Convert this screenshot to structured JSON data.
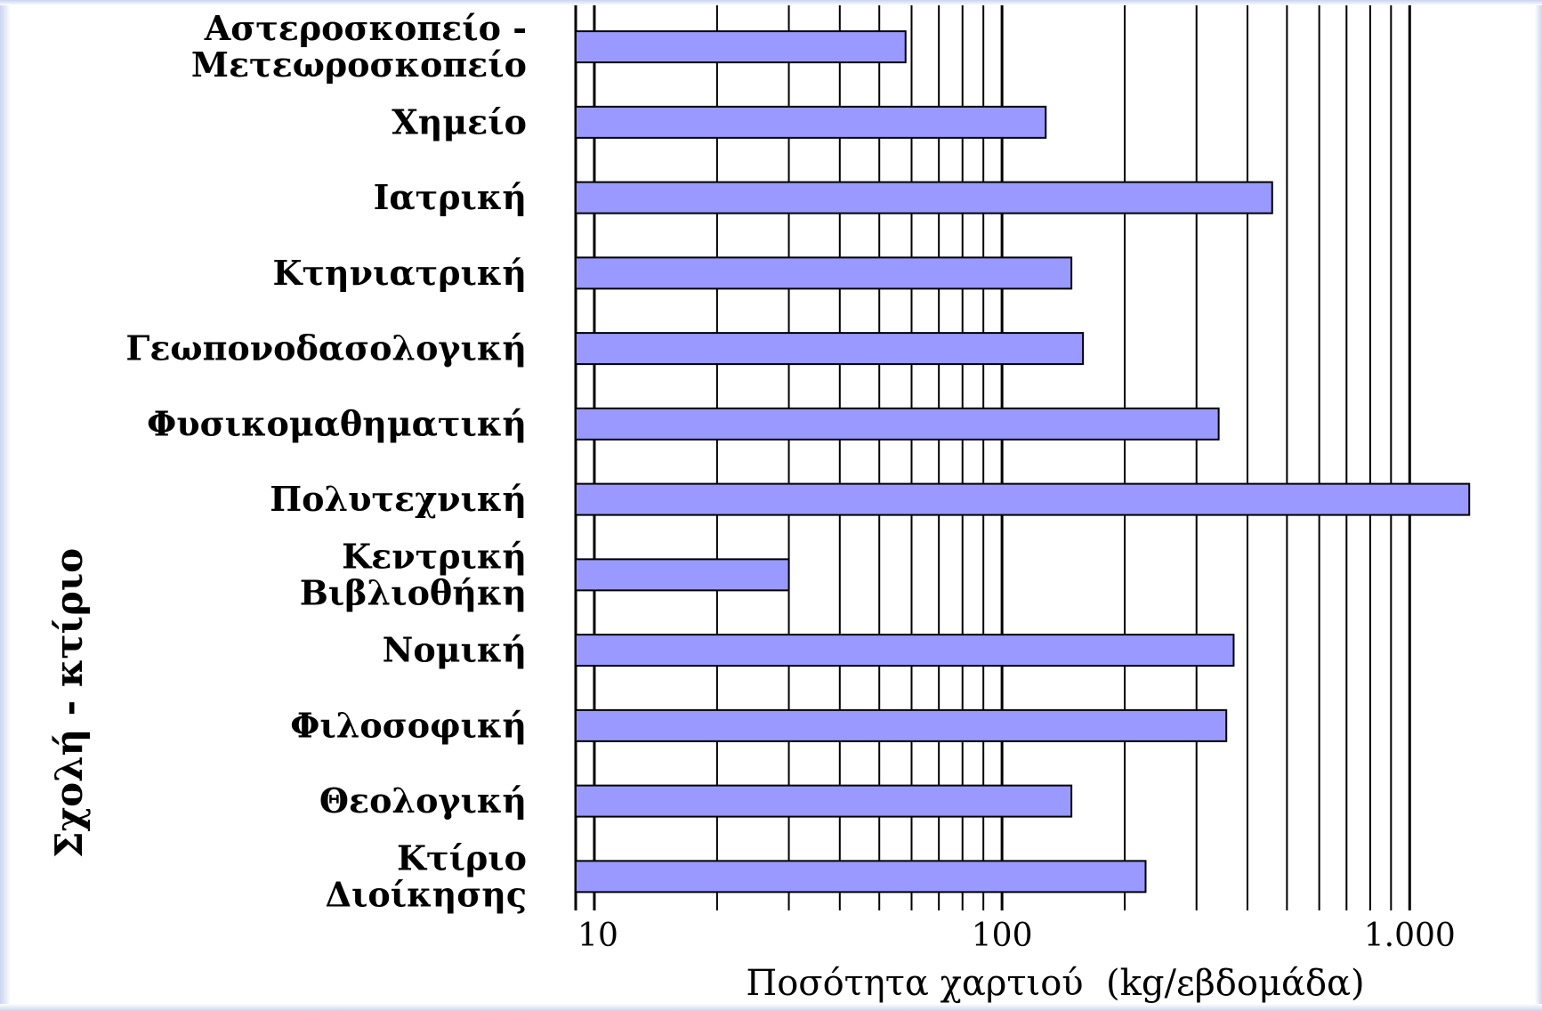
{
  "chart_data": {
    "type": "bar",
    "orientation": "horizontal",
    "x_scale": "log",
    "xlim": [
      9,
      1900
    ],
    "xlabel": "Ποσότητα χαρτιού  (kg/εβδομάδα)",
    "ylabel": "Σχολή - κτίριο",
    "x_ticks": [
      {
        "value": 10,
        "label": "10"
      },
      {
        "value": 100,
        "label": "100"
      },
      {
        "value": 1000,
        "label": "1.000"
      }
    ],
    "grid": "vertical",
    "bar_color": "#9999ff",
    "categories": [
      [
        "Αστεροσκοπείο -",
        "Μετεωροσκοπείο"
      ],
      [
        "Χημείο"
      ],
      [
        "Ιατρική"
      ],
      [
        "Κτηνιατρική"
      ],
      [
        "Γεωπονοδασολογική"
      ],
      [
        "Φυσικομαθηματική"
      ],
      [
        "Πολυτεχνική"
      ],
      [
        "Κεντρική",
        "Βιβλιοθήκη"
      ],
      [
        "Νομική"
      ],
      [
        "Φιλοσοφική"
      ],
      [
        "Θεολογική"
      ],
      [
        "Κτίριο",
        "Διοίκησης"
      ]
    ],
    "values": [
      58,
      128,
      460,
      148,
      158,
      340,
      1400,
      30,
      370,
      355,
      148,
      225
    ]
  }
}
